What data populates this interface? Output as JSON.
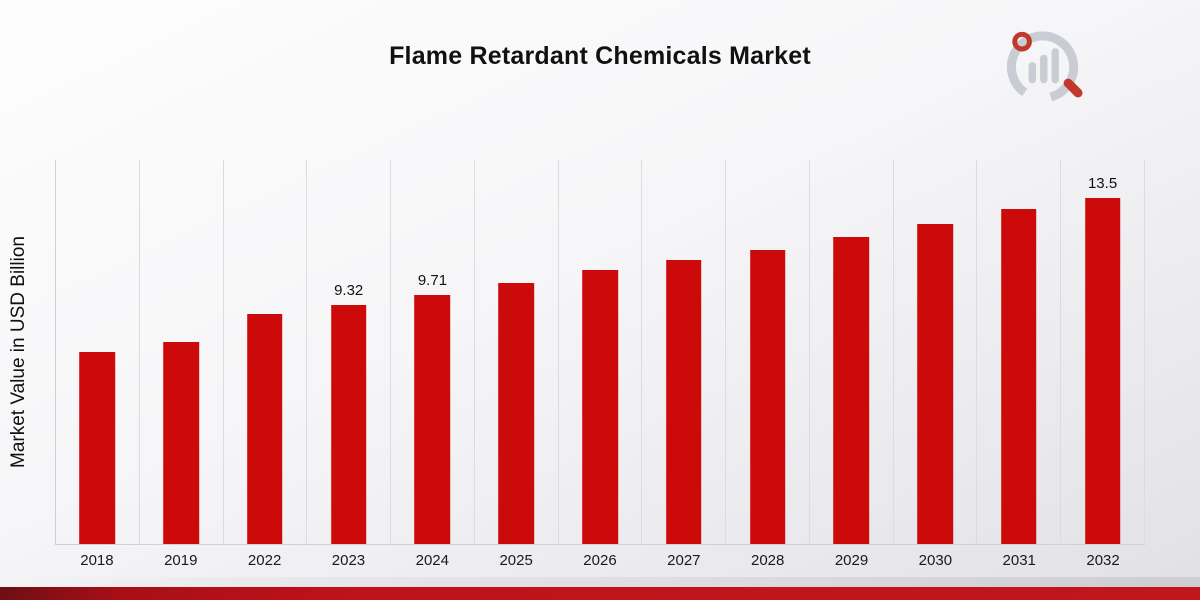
{
  "title": "Flame Retardant Chemicals Market",
  "branding": {
    "logo_name": "market-research-logo",
    "accent_color": "#c3151c",
    "logo_gray": "#c9cdd3",
    "logo_red": "#c0392b"
  },
  "chart_data": {
    "type": "bar",
    "title": "Flame Retardant Chemicals Market",
    "xlabel": "",
    "ylabel": "Market Value in USD Billion",
    "categories": [
      "2018",
      "2019",
      "2022",
      "2023",
      "2024",
      "2025",
      "2026",
      "2027",
      "2028",
      "2029",
      "2030",
      "2031",
      "2032"
    ],
    "values": [
      7.5,
      7.9,
      9.0,
      9.32,
      9.71,
      10.2,
      10.7,
      11.1,
      11.5,
      12.0,
      12.5,
      13.1,
      13.5
    ],
    "data_labels": {
      "2023": "9.32",
      "2024": "9.71",
      "2032": "13.5"
    },
    "ylim": [
      0,
      15
    ],
    "bar_color": "#cc0a0a",
    "grid": "vertical",
    "legend": "none"
  }
}
